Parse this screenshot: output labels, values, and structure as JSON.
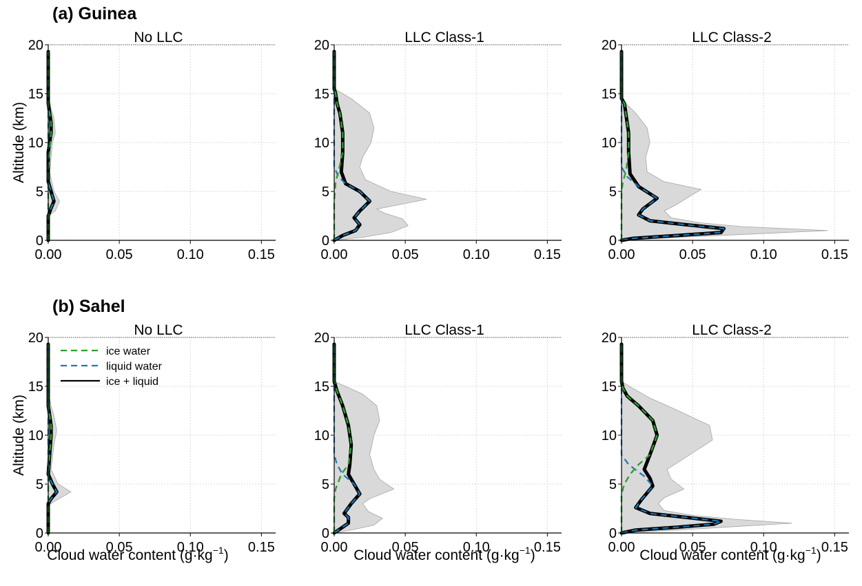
{
  "figure": {
    "rows": [
      {
        "title": "(a) Guinea"
      },
      {
        "title": "(b) Sahel"
      }
    ],
    "ylabel": "Altitude (km)",
    "xlabel": "Cloud water content (g·kg",
    "xlabel_exp": "−1",
    "xlabel_close": ")"
  },
  "chart_data": [
    {
      "type": "line",
      "id": "a1",
      "row": 0,
      "col": 0,
      "title": "No LLC",
      "xlim": [
        0,
        0.16
      ],
      "ylim": [
        0,
        20
      ],
      "xticks": [
        "0.00",
        "0.05",
        "0.10",
        "0.15"
      ],
      "xtick_values": [
        0,
        0.05,
        0.1,
        0.15
      ],
      "yticks": [
        "0",
        "5",
        "10",
        "15",
        "20"
      ],
      "ytick_values": [
        0,
        5,
        10,
        15,
        20
      ],
      "grid": true,
      "legend": null,
      "series": [
        {
          "key": "ice",
          "color": "#2ca02c",
          "dash": true,
          "x": [
            0,
            0,
            0.001,
            0.002,
            0.002,
            0.001,
            0,
            0,
            0,
            0
          ],
          "y": [
            0,
            7,
            9,
            11,
            12,
            13,
            13.5,
            15,
            17,
            19.3
          ]
        },
        {
          "key": "liquid",
          "color": "#1f77b4",
          "dash": true,
          "x": [
            0,
            0,
            0.002,
            0.004,
            0.002,
            0,
            0,
            0
          ],
          "y": [
            0,
            2.5,
            3.3,
            4,
            5,
            6,
            8,
            19.3
          ]
        },
        {
          "key": "total",
          "color": "#000000",
          "dash": false,
          "x": [
            0,
            0,
            0.002,
            0.004,
            0.002,
            0,
            0,
            0.001,
            0.002,
            0.002,
            0.001,
            0,
            0
          ],
          "y": [
            0,
            2.5,
            3.3,
            4,
            5,
            6,
            9,
            10,
            11,
            12,
            13,
            14,
            19.3
          ]
        }
      ],
      "envelope": {
        "x": [
          0,
          0,
          0.005,
          0.008,
          0.004,
          0.001,
          0.003,
          0.005,
          0.004,
          0.002,
          0,
          0
        ],
        "y": [
          0,
          2.5,
          3,
          4,
          5,
          7,
          10,
          11,
          12.5,
          13.5,
          15,
          19.3
        ]
      }
    },
    {
      "type": "line",
      "id": "a2",
      "row": 0,
      "col": 1,
      "title": "LLC Class-1",
      "xlim": [
        0,
        0.16
      ],
      "ylim": [
        0,
        20
      ],
      "xticks": [
        "0.00",
        "0.05",
        "0.10",
        "0.15"
      ],
      "xtick_values": [
        0,
        0.05,
        0.1,
        0.15
      ],
      "yticks": [
        "0",
        "5",
        "10",
        "15",
        "20"
      ],
      "ytick_values": [
        0,
        5,
        10,
        15,
        20
      ],
      "grid": true,
      "legend": null,
      "series": [
        {
          "key": "ice",
          "color": "#2ca02c",
          "dash": true,
          "x": [
            0,
            0,
            0.001,
            0.003,
            0.006,
            0.006,
            0.004,
            0.002,
            0.001,
            0,
            0
          ],
          "y": [
            0,
            4,
            6,
            7,
            9,
            11,
            13,
            14,
            15,
            15.5,
            19.3
          ]
        },
        {
          "key": "liquid",
          "color": "#1f77b4",
          "dash": true,
          "x": [
            0,
            0.006,
            0.015,
            0.018,
            0.014,
            0.018,
            0.025,
            0.018,
            0.008,
            0.003,
            0,
            0
          ],
          "y": [
            0,
            0.5,
            1,
            1.6,
            2.3,
            3,
            4,
            5,
            5.8,
            6.5,
            7.5,
            19.3
          ]
        },
        {
          "key": "total",
          "color": "#000000",
          "dash": false,
          "x": [
            0,
            0.006,
            0.015,
            0.018,
            0.014,
            0.018,
            0.025,
            0.018,
            0.008,
            0.005,
            0.006,
            0.006,
            0.004,
            0.002,
            0.001,
            0,
            0
          ],
          "y": [
            0,
            0.5,
            1,
            1.6,
            2.3,
            3,
            4,
            5,
            5.8,
            7,
            9,
            11,
            13,
            14,
            15,
            15.5,
            19.3
          ]
        }
      ],
      "envelope": {
        "x": [
          0,
          0.02,
          0.04,
          0.052,
          0.048,
          0.035,
          0.03,
          0.065,
          0.04,
          0.022,
          0.018,
          0.02,
          0.026,
          0.028,
          0.025,
          0.012,
          0,
          0
        ],
        "y": [
          0,
          0.3,
          0.8,
          1.5,
          2.2,
          2.8,
          3.2,
          4.2,
          5,
          6.2,
          7.5,
          8.5,
          10,
          11.5,
          13,
          14.5,
          15.5,
          19.3
        ]
      }
    },
    {
      "type": "line",
      "id": "a3",
      "row": 0,
      "col": 2,
      "title": "LLC Class-2",
      "xlim": [
        0,
        0.16
      ],
      "ylim": [
        0,
        20
      ],
      "xticks": [
        "0.00",
        "0.05",
        "0.10",
        "0.15"
      ],
      "xtick_values": [
        0,
        0.05,
        0.1,
        0.15
      ],
      "yticks": [
        "0",
        "5",
        "10",
        "15",
        "20"
      ],
      "ytick_values": [
        0,
        5,
        10,
        15,
        20
      ],
      "grid": true,
      "legend": null,
      "series": [
        {
          "key": "ice",
          "color": "#2ca02c",
          "dash": true,
          "x": [
            0,
            0,
            0.001,
            0.003,
            0.005,
            0.005,
            0.003,
            0.002,
            0,
            0
          ],
          "y": [
            0,
            5,
            6,
            7,
            9,
            11,
            13,
            14,
            14.5,
            19.3
          ]
        },
        {
          "key": "liquid",
          "color": "#1f77b4",
          "dash": true,
          "x": [
            0,
            0.008,
            0.04,
            0.07,
            0.072,
            0.045,
            0.02,
            0.012,
            0.015,
            0.025,
            0.012,
            0.004,
            0,
            0
          ],
          "y": [
            0,
            0.2,
            0.5,
            0.8,
            1.2,
            1.6,
            2,
            2.6,
            3.2,
            4.3,
            5.5,
            6.5,
            7.5,
            19.3
          ]
        },
        {
          "key": "total",
          "color": "#000000",
          "dash": false,
          "x": [
            0,
            0.008,
            0.04,
            0.07,
            0.072,
            0.045,
            0.02,
            0.012,
            0.015,
            0.025,
            0.012,
            0.006,
            0.005,
            0.005,
            0.003,
            0.002,
            0,
            0
          ],
          "y": [
            0,
            0.2,
            0.5,
            0.8,
            1.2,
            1.6,
            2,
            2.6,
            3.2,
            4.3,
            5.5,
            6.8,
            9,
            11,
            13,
            14,
            14.5,
            19.3
          ]
        }
      ],
      "envelope": {
        "x": [
          0,
          0.04,
          0.1,
          0.145,
          0.085,
          0.055,
          0.035,
          0.03,
          0.038,
          0.056,
          0.03,
          0.018,
          0.017,
          0.02,
          0.018,
          0.01,
          0.003,
          0,
          0
        ],
        "y": [
          0,
          0.3,
          0.7,
          1,
          1.4,
          1.8,
          2.3,
          3,
          3.6,
          5.2,
          6,
          7,
          8.5,
          10,
          11.5,
          13,
          14,
          14.5,
          19.3
        ]
      }
    },
    {
      "type": "line",
      "id": "b1",
      "row": 1,
      "col": 0,
      "title": "No LLC",
      "xlim": [
        0,
        0.16
      ],
      "ylim": [
        0,
        20
      ],
      "xticks": [
        "0.00",
        "0.05",
        "0.10",
        "0.15"
      ],
      "xtick_values": [
        0,
        0.05,
        0.1,
        0.15
      ],
      "yticks": [
        "0",
        "5",
        "10",
        "15",
        "20"
      ],
      "ytick_values": [
        0,
        5,
        10,
        15,
        20
      ],
      "grid": true,
      "legend": {
        "placement": "top-left",
        "entries": [
          {
            "key": "ice",
            "label": "ice water"
          },
          {
            "key": "liquid",
            "label": "liquid water"
          },
          {
            "key": "total",
            "label": "ice + liquid"
          }
        ]
      },
      "series": [
        {
          "key": "ice",
          "color": "#2ca02c",
          "dash": true,
          "x": [
            0,
            0,
            0.001,
            0.002,
            0.002,
            0.001,
            0,
            0,
            0
          ],
          "y": [
            0,
            6,
            8,
            10,
            11,
            12,
            13,
            15,
            19.3
          ]
        },
        {
          "key": "liquid",
          "color": "#1f77b4",
          "dash": true,
          "x": [
            0,
            0,
            0.002,
            0.006,
            0.003,
            0,
            0,
            0
          ],
          "y": [
            0,
            3,
            3.5,
            4.2,
            5,
            5.8,
            7,
            19.3
          ]
        },
        {
          "key": "total",
          "color": "#000000",
          "dash": false,
          "x": [
            0,
            0,
            0.002,
            0.006,
            0.003,
            0,
            0.001,
            0.002,
            0.002,
            0.001,
            0,
            0
          ],
          "y": [
            0,
            3,
            3.5,
            4.2,
            5,
            6,
            8,
            10,
            11,
            12,
            13,
            19.3
          ]
        }
      ],
      "envelope": {
        "x": [
          0,
          0,
          0.004,
          0.016,
          0.007,
          0.002,
          0.004,
          0.006,
          0.004,
          0.002,
          0,
          0
        ],
        "y": [
          0,
          2.8,
          3.2,
          4.2,
          5,
          6.5,
          9,
          10.5,
          12,
          13,
          14.5,
          19.3
        ]
      }
    },
    {
      "type": "line",
      "id": "b2",
      "row": 1,
      "col": 1,
      "title": "LLC Class-1",
      "xlim": [
        0,
        0.16
      ],
      "ylim": [
        0,
        20
      ],
      "xticks": [
        "0.00",
        "0.05",
        "0.10",
        "0.15"
      ],
      "xtick_values": [
        0,
        0.05,
        0.1,
        0.15
      ],
      "yticks": [
        "0",
        "5",
        "10",
        "15",
        "20"
      ],
      "ytick_values": [
        0,
        5,
        10,
        15,
        20
      ],
      "grid": true,
      "legend": null,
      "series": [
        {
          "key": "ice",
          "color": "#2ca02c",
          "dash": true,
          "x": [
            0,
            0,
            0.001,
            0.005,
            0.01,
            0.012,
            0.01,
            0.006,
            0.002,
            0,
            0
          ],
          "y": [
            0,
            3.5,
            4.5,
            6,
            7,
            9,
            11,
            13,
            14.5,
            15.5,
            19.3
          ]
        },
        {
          "key": "liquid",
          "color": "#1f77b4",
          "dash": true,
          "x": [
            0,
            0.005,
            0.01,
            0.01,
            0.007,
            0.012,
            0.018,
            0.014,
            0.006,
            0.002,
            0,
            0
          ],
          "y": [
            0,
            0.5,
            1,
            1.6,
            2,
            3,
            4,
            5,
            6,
            7,
            8,
            19.3
          ]
        },
        {
          "key": "total",
          "color": "#000000",
          "dash": false,
          "x": [
            0,
            0.005,
            0.01,
            0.01,
            0.007,
            0.012,
            0.018,
            0.014,
            0.01,
            0.011,
            0.012,
            0.01,
            0.006,
            0.002,
            0,
            0
          ],
          "y": [
            0,
            0.5,
            1,
            1.6,
            2,
            3,
            4,
            5,
            6,
            7,
            9,
            11,
            13,
            14.5,
            15.5,
            19.3
          ]
        }
      ],
      "envelope": {
        "x": [
          0,
          0.012,
          0.028,
          0.034,
          0.024,
          0.02,
          0.025,
          0.042,
          0.032,
          0.028,
          0.025,
          0.028,
          0.032,
          0.03,
          0.02,
          0.008,
          0,
          0
        ],
        "y": [
          0,
          0.3,
          0.8,
          1.5,
          2.2,
          3,
          3.5,
          4.5,
          5.5,
          6.5,
          8,
          10,
          11.5,
          13,
          14.2,
          15,
          15.5,
          19.3
        ]
      }
    },
    {
      "type": "line",
      "id": "b3",
      "row": 1,
      "col": 2,
      "title": "LLC Class-2",
      "xlim": [
        0,
        0.16
      ],
      "ylim": [
        0,
        20
      ],
      "xticks": [
        "0.00",
        "0.05",
        "0.10",
        "0.15"
      ],
      "xtick_values": [
        0,
        0.05,
        0.1,
        0.15
      ],
      "yticks": [
        "0",
        "5",
        "10",
        "15",
        "20"
      ],
      "ytick_values": [
        0,
        5,
        10,
        15,
        20
      ],
      "grid": true,
      "legend": null,
      "series": [
        {
          "key": "ice",
          "color": "#2ca02c",
          "dash": true,
          "x": [
            0,
            0,
            0.002,
            0.006,
            0.012,
            0.02,
            0.025,
            0.022,
            0.012,
            0.004,
            0.001,
            0,
            0
          ],
          "y": [
            0,
            4,
            5,
            6,
            7,
            8,
            10,
            11.5,
            13,
            14,
            14.8,
            15.5,
            19.3
          ]
        },
        {
          "key": "liquid",
          "color": "#1f77b4",
          "dash": true,
          "x": [
            0,
            0.01,
            0.04,
            0.065,
            0.07,
            0.045,
            0.02,
            0.01,
            0.014,
            0.022,
            0.016,
            0.005,
            0,
            0,
            0
          ],
          "y": [
            0,
            0.3,
            0.6,
            0.9,
            1.2,
            1.6,
            2,
            2.6,
            3.4,
            4.8,
            5.8,
            7,
            8,
            9,
            19.3
          ]
        },
        {
          "key": "total",
          "color": "#000000",
          "dash": false,
          "x": [
            0,
            0.01,
            0.04,
            0.065,
            0.07,
            0.045,
            0.02,
            0.01,
            0.014,
            0.022,
            0.02,
            0.016,
            0.02,
            0.025,
            0.022,
            0.012,
            0.004,
            0.001,
            0,
            0
          ],
          "y": [
            0,
            0.3,
            0.6,
            0.9,
            1.2,
            1.6,
            2,
            2.6,
            3.4,
            4.8,
            5.6,
            6.5,
            8,
            10,
            11.5,
            13,
            14,
            14.8,
            15.5,
            19.3
          ]
        }
      ],
      "envelope": {
        "x": [
          0,
          0.04,
          0.085,
          0.12,
          0.08,
          0.05,
          0.03,
          0.026,
          0.03,
          0.044,
          0.035,
          0.032,
          0.048,
          0.064,
          0.062,
          0.04,
          0.02,
          0.008,
          0,
          0
        ],
        "y": [
          0,
          0.3,
          0.7,
          1,
          1.4,
          1.8,
          2.3,
          3,
          3.6,
          4.5,
          5.5,
          6.5,
          8,
          9.5,
          11,
          12.5,
          13.8,
          14.8,
          15.5,
          19.3
        ]
      }
    }
  ]
}
